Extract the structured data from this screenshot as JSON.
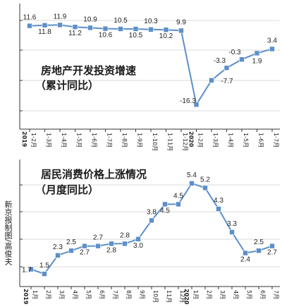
{
  "credit": "新京报制图/高俊夫",
  "chart_data": [
    {
      "type": "line",
      "title": "房地产开发投资增速",
      "subtitle": "（累计同比）",
      "categories": [
        "1-2月",
        "1-3月",
        "1-4月",
        "1-5月",
        "1-6月",
        "1-7月",
        "1-8月",
        "1-9月",
        "1-10月",
        "1-11月",
        "1-12月",
        "1-2月",
        "1-3月",
        "1-4月",
        "1-5月",
        "1-6月",
        "1-7月"
      ],
      "values": [
        11.6,
        11.8,
        11.9,
        11.2,
        10.9,
        10.6,
        10.5,
        10.5,
        10.3,
        10.2,
        9.9,
        -16.3,
        -7.7,
        -3.3,
        -0.3,
        1.9,
        3.4
      ],
      "value_labels": [
        "11.6",
        "11.8",
        "11.9",
        "11.2",
        "10.9",
        "10.6",
        "10.5",
        "10.5",
        "10.3",
        "10.2",
        "9.9",
        "-16.3",
        "-7.7",
        "-3.3",
        "-0.3",
        "1.9",
        "3.4"
      ],
      "year_labels": [
        {
          "index": 0,
          "text": "2019"
        },
        {
          "index": 11,
          "text": "2020"
        }
      ],
      "ylim": [
        -20,
        14
      ],
      "line_color": "#5b8fc9",
      "marker_color": "#5b8fc9"
    },
    {
      "type": "line",
      "title": "居民消费价格上涨情况",
      "subtitle": "（月度同比）",
      "categories": [
        "1月",
        "2月",
        "3月",
        "4月",
        "5月",
        "6月",
        "7月",
        "8月",
        "9月",
        "10月",
        "11月",
        "12月",
        "1月",
        "2月",
        "3月",
        "4月",
        "5月",
        "6月",
        "7月"
      ],
      "values": [
        1.7,
        1.5,
        2.3,
        2.5,
        2.7,
        2.7,
        2.8,
        2.8,
        3.0,
        3.8,
        4.5,
        4.5,
        5.4,
        5.2,
        4.3,
        3.3,
        2.4,
        2.5,
        2.7
      ],
      "value_labels": [
        "1.7",
        "1.5",
        "2.3",
        "2.5",
        "2.7",
        "2.7",
        "2.8",
        "2.8",
        "3.0",
        "3.8",
        "4.5",
        "4.5",
        "5.4",
        "5.2",
        "4.3",
        "3.3",
        "2.4",
        "2.5",
        "2.7"
      ],
      "year_labels": [
        {
          "index": 0,
          "text": "2019"
        },
        {
          "index": 12,
          "text": "2020"
        }
      ],
      "ylim": [
        1.2,
        6.0
      ],
      "line_color": "#5b8fc9",
      "marker_color": "#5b8fc9"
    }
  ]
}
